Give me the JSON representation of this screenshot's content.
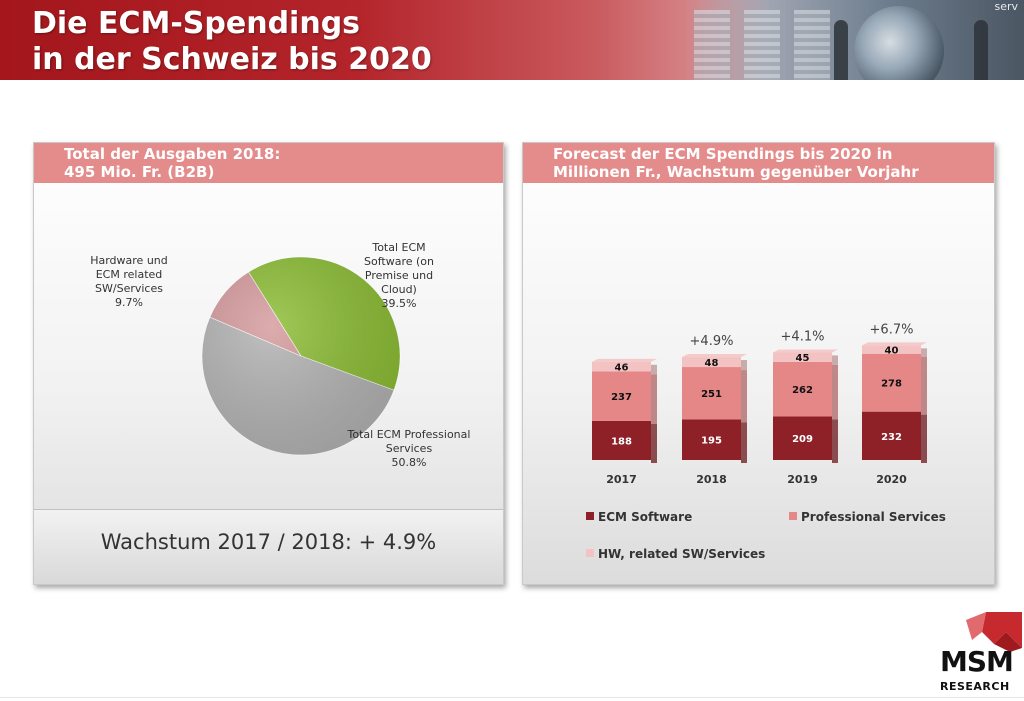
{
  "slide": {
    "title_line1": "Die ECM-Spendings",
    "title_line2": "in der Schweiz bis 2020",
    "banner_corner_text": "serv"
  },
  "left_panel": {
    "header_line1": "Total der Ausgaben 2018:",
    "header_line2": "495 Mio. Fr. (B2B)",
    "growth_text": "Wachstum 2017 / 2018: + 4.9%"
  },
  "right_panel": {
    "header_line1": "Forecast der ECM Spendings bis 2020 in",
    "header_line2": "Millionen Fr., Wachstum gegenüber Vorjahr"
  },
  "logo": {
    "text": "MSM",
    "sub": "RESEARCH"
  },
  "chart_data": [
    {
      "type": "pie",
      "title": "Total der Ausgaben 2018: 495 Mio. Fr. (B2B)",
      "slices": [
        {
          "label_lines": [
            "Total ECM",
            "Software (on",
            "Premise und",
            "Cloud)",
            "39.5%"
          ],
          "value": 39.5,
          "color": "#8cbd35"
        },
        {
          "label_lines": [
            "Total ECM Professional",
            "Services",
            "50.8%"
          ],
          "value": 50.8,
          "color": "#b3b3b3"
        },
        {
          "label_lines": [
            "Hardware und",
            "ECM related",
            "SW/Services",
            "9.7%"
          ],
          "value": 9.7,
          "color": "#d59a9c"
        }
      ]
    },
    {
      "type": "bar",
      "stacked": true,
      "title": "Forecast der ECM Spendings bis 2020 in Millionen Fr., Wachstum gegenüber Vorjahr",
      "categories": [
        "2017",
        "2018",
        "2019",
        "2020"
      ],
      "series": [
        {
          "name": "ECM Software",
          "values": [
            188,
            195,
            209,
            232
          ],
          "color": "#8e2127",
          "label_color": "#ffffff"
        },
        {
          "name": "Professional Services",
          "values": [
            237,
            251,
            262,
            278
          ],
          "color": "#e58687",
          "label_color": "#111111"
        },
        {
          "name": "HW, related SW/Services",
          "values": [
            46,
            48,
            45,
            40
          ],
          "color": "#f3c3c3",
          "label_color": "#111111"
        }
      ],
      "growth_labels": [
        "",
        "+4.9%",
        "+4.1%",
        "+6.7%"
      ],
      "legend_position": "bottom"
    }
  ]
}
